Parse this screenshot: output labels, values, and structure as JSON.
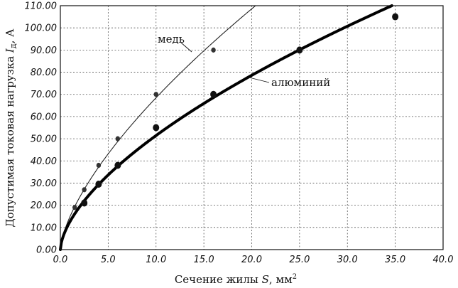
{
  "chart_data": {
    "type": "line",
    "title": "",
    "xlabel": "Сечение жилы S, мм²",
    "ylabel": "Допустимая токовая нагрузка Iд, А",
    "xlim": [
      0,
      40
    ],
    "ylim": [
      0,
      110
    ],
    "x_ticks": [
      "0.0",
      "5.0",
      "10.0",
      "15.0",
      "20.0",
      "25.0",
      "30.0",
      "35.0",
      "40.0"
    ],
    "y_ticks": [
      "0.00",
      "10.00",
      "20.00",
      "30.00",
      "40.00",
      "50.00",
      "60.00",
      "70.00",
      "80.00",
      "90.00",
      "100.00",
      "110.00"
    ],
    "grid": true,
    "series": [
      {
        "name": "медь",
        "color": "#222222",
        "line": "thin",
        "x": [
          1.5,
          2.5,
          4,
          6,
          10,
          16
        ],
        "y": [
          19,
          27,
          38,
          50,
          70,
          90
        ]
      },
      {
        "name": "алюминий",
        "color": "#000000",
        "line": "thick",
        "x": [
          2.5,
          4,
          6,
          10,
          16,
          25,
          35
        ],
        "y": [
          21,
          29.5,
          38,
          55,
          70,
          90,
          105
        ]
      }
    ]
  }
}
